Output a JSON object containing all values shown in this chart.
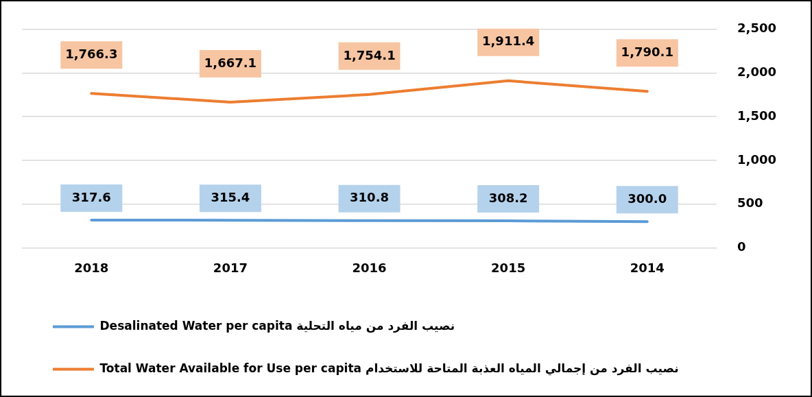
{
  "chart_data": {
    "type": "line",
    "categories": [
      "2018",
      "2017",
      "2016",
      "2015",
      "2014"
    ],
    "series": [
      {
        "name": "Desalinated Water per capita نصيب الفرد من مياه التحلية",
        "color": "#5b9bd5",
        "values": [
          317.6,
          315.4,
          310.8,
          308.2,
          300.0
        ],
        "value_labels": [
          "317.6",
          "315.4",
          "310.8",
          "308.2",
          "300.0"
        ]
      },
      {
        "name": "Total Water Available for Use per capita نصيب الفرد من إجمالي المياه العذبة المتاحة للاستخدام",
        "color": "#ed7d31",
        "values": [
          1766.3,
          1667.1,
          1754.1,
          1911.4,
          1790.1
        ],
        "value_labels": [
          "1,766.3",
          "1,667.1",
          "1,754.1",
          "1,911.4",
          "1,790.1"
        ]
      }
    ],
    "ylim": [
      0,
      2500
    ],
    "yticks": [
      {
        "value": 0,
        "label": "0"
      },
      {
        "value": 500,
        "label": "500"
      },
      {
        "value": 1000,
        "label": "1,000"
      },
      {
        "value": 1500,
        "label": "1,500"
      },
      {
        "value": 2000,
        "label": "2,000"
      },
      {
        "value": 2500,
        "label": "2,500"
      }
    ],
    "grid": "y",
    "legend": "bottom",
    "marker": "none",
    "line_style": "solid"
  }
}
